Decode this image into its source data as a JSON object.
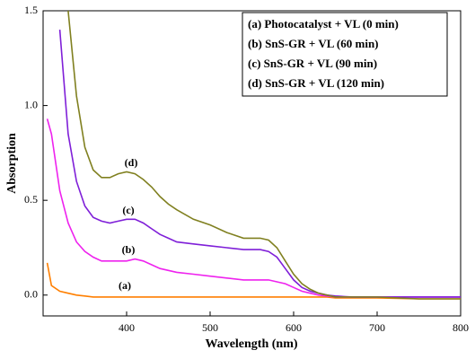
{
  "chart_data": {
    "type": "line",
    "xlabel": "Wavelength (nm)",
    "ylabel": "Absorption",
    "x": [
      305,
      310,
      320,
      330,
      340,
      350,
      360,
      370,
      380,
      390,
      400,
      410,
      420,
      430,
      440,
      450,
      460,
      480,
      500,
      520,
      540,
      560,
      570,
      580,
      590,
      600,
      610,
      620,
      630,
      640,
      650,
      670,
      700,
      750,
      800
    ],
    "series": [
      {
        "name": "(a) Photocatalyst + VL (0 min)",
        "color": "#ff7f00",
        "values": [
          0.17,
          0.05,
          0.02,
          0.01,
          0.0,
          -0.005,
          -0.01,
          -0.01,
          -0.01,
          -0.01,
          -0.01,
          -0.01,
          -0.01,
          -0.01,
          -0.01,
          -0.01,
          -0.01,
          -0.01,
          -0.01,
          -0.01,
          -0.01,
          -0.01,
          -0.01,
          -0.01,
          -0.01,
          -0.01,
          -0.01,
          -0.01,
          -0.01,
          -0.01,
          -0.015,
          -0.015,
          -0.015,
          -0.02,
          -0.02
        ]
      },
      {
        "name": "(b) SnS-GR + VL (60 min)",
        "color": "#ee22ee",
        "values": [
          0.93,
          0.85,
          0.55,
          0.38,
          0.28,
          0.23,
          0.2,
          0.18,
          0.18,
          0.18,
          0.18,
          0.19,
          0.18,
          0.16,
          0.14,
          0.13,
          0.12,
          0.11,
          0.1,
          0.09,
          0.08,
          0.08,
          0.08,
          0.07,
          0.06,
          0.04,
          0.02,
          0.01,
          0.0,
          -0.005,
          -0.01,
          -0.01,
          -0.01,
          -0.01,
          -0.01
        ]
      },
      {
        "name": "(c) SnS-GR + VL (90 min)",
        "color": "#7f1fd8",
        "values": [
          null,
          null,
          1.4,
          0.85,
          0.6,
          0.47,
          0.41,
          0.39,
          0.38,
          0.39,
          0.4,
          0.4,
          0.38,
          0.35,
          0.32,
          0.3,
          0.28,
          0.27,
          0.26,
          0.25,
          0.24,
          0.24,
          0.23,
          0.2,
          0.14,
          0.08,
          0.04,
          0.02,
          0.01,
          0.0,
          -0.005,
          -0.01,
          -0.01,
          -0.01,
          -0.01
        ]
      },
      {
        "name": "(d) SnS-GR + VL (120 min)",
        "color": "#808020",
        "values": [
          null,
          null,
          null,
          1.5,
          1.05,
          0.78,
          0.66,
          0.62,
          0.62,
          0.64,
          0.65,
          0.64,
          0.61,
          0.57,
          0.52,
          0.48,
          0.45,
          0.4,
          0.37,
          0.33,
          0.3,
          0.3,
          0.29,
          0.25,
          0.18,
          0.11,
          0.06,
          0.03,
          0.01,
          0.0,
          -0.01,
          -0.01,
          -0.01,
          -0.02,
          -0.02
        ]
      }
    ],
    "annotations": [
      "(a)",
      "(b)",
      "(c)",
      "(d)"
    ],
    "xlim": [
      300,
      800
    ],
    "xticks": [
      400,
      500,
      600,
      700,
      800
    ],
    "ylim": [
      -0.11,
      1.5
    ],
    "yticks": [
      {
        "value": 0,
        "label": "0.0"
      },
      {
        "value": 0.5,
        "label": "0.5"
      },
      {
        "value": 1,
        "label": "1.0"
      },
      {
        "value": 1.5,
        "label": "1.5"
      }
    ],
    "legend": "upper right"
  }
}
